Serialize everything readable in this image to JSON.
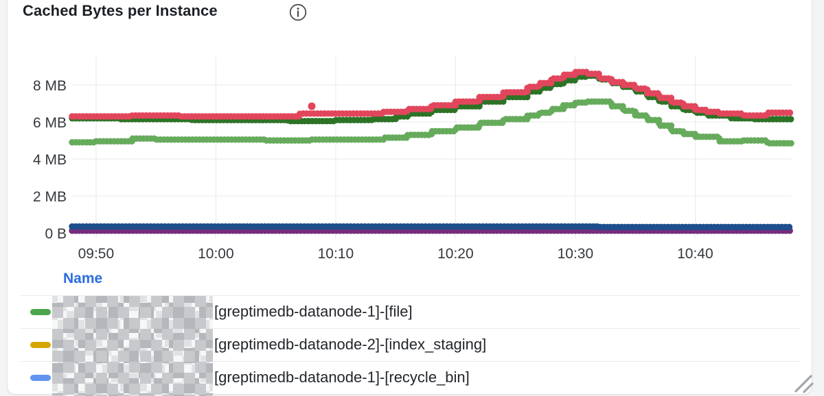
{
  "panel": {
    "title": "Cached Bytes per Instance"
  },
  "legend": {
    "header_label": "Name"
  },
  "chart_data": {
    "type": "line",
    "title": "Cached Bytes per Instance",
    "style": "dotted step line (dense point markers)",
    "unit": "bytes",
    "grid": true,
    "x_range": [
      "09:48",
      "10:48"
    ],
    "x_ticks": [
      "09:50",
      "10:00",
      "10:10",
      "10:20",
      "10:30",
      "10:40"
    ],
    "y_ticks": [
      {
        "label": "8 MB",
        "mb": 8
      },
      {
        "label": "6 MB",
        "mb": 6
      },
      {
        "label": "4 MB",
        "mb": 4
      },
      {
        "label": "2 MB",
        "mb": 2
      },
      {
        "label": "0 B",
        "mb": 0
      }
    ],
    "ylim_mb": [
      0,
      9.55
    ],
    "series": [
      {
        "name": "purple",
        "color": "#772d7b",
        "points": [
          [
            "09:48",
            0.12
          ],
          [
            "10:48",
            0.12
          ]
        ]
      },
      {
        "name": "dark-blue",
        "color": "#1f4e8c",
        "points": [
          [
            "09:48",
            0.35
          ],
          [
            "10:30",
            0.35
          ],
          [
            "10:32",
            0.32
          ],
          [
            "10:48",
            0.32
          ]
        ]
      },
      {
        "name": "light-green",
        "color": "#66ab5c",
        "points": [
          [
            "09:48",
            4.9
          ],
          [
            "09:50",
            4.95
          ],
          [
            "09:53",
            5.1
          ],
          [
            "09:55",
            5.05
          ],
          [
            "10:00",
            5.05
          ],
          [
            "10:04",
            5.0
          ],
          [
            "10:08",
            5.05
          ],
          [
            "10:12",
            5.05
          ],
          [
            "10:14",
            5.15
          ],
          [
            "10:16",
            5.3
          ],
          [
            "10:18",
            5.5
          ],
          [
            "10:20",
            5.7
          ],
          [
            "10:22",
            5.95
          ],
          [
            "10:24",
            6.15
          ],
          [
            "10:26",
            6.35
          ],
          [
            "10:27",
            6.5
          ],
          [
            "10:28",
            6.7
          ],
          [
            "10:29",
            6.9
          ],
          [
            "10:30",
            7.05
          ],
          [
            "10:31",
            7.1
          ],
          [
            "10:32",
            7.1
          ],
          [
            "10:33",
            6.85
          ],
          [
            "10:34",
            6.6
          ],
          [
            "10:35",
            6.35
          ],
          [
            "10:36",
            6.1
          ],
          [
            "10:37",
            5.8
          ],
          [
            "10:38",
            5.5
          ],
          [
            "10:39",
            5.35
          ],
          [
            "10:40",
            5.2
          ],
          [
            "10:42",
            4.95
          ],
          [
            "10:44",
            5.0
          ],
          [
            "10:46",
            4.85
          ],
          [
            "10:48",
            4.8
          ]
        ]
      },
      {
        "name": "dark-green",
        "color": "#2d7326",
        "points": [
          [
            "09:48",
            6.2
          ],
          [
            "09:52",
            6.15
          ],
          [
            "09:58",
            6.1
          ],
          [
            "10:03",
            6.1
          ],
          [
            "10:06",
            6.05
          ],
          [
            "10:10",
            6.1
          ],
          [
            "10:13",
            6.15
          ],
          [
            "10:15",
            6.3
          ],
          [
            "10:16",
            6.45
          ],
          [
            "10:18",
            6.65
          ],
          [
            "10:20",
            6.85
          ],
          [
            "10:22",
            7.1
          ],
          [
            "10:24",
            7.35
          ],
          [
            "10:26",
            7.65
          ],
          [
            "10:27",
            7.85
          ],
          [
            "10:28",
            8.05
          ],
          [
            "10:29",
            8.25
          ],
          [
            "10:30",
            8.45
          ],
          [
            "10:31",
            8.5
          ],
          [
            "10:32",
            8.3
          ],
          [
            "10:33",
            8.1
          ],
          [
            "10:34",
            7.9
          ],
          [
            "10:35",
            7.65
          ],
          [
            "10:36",
            7.35
          ],
          [
            "10:37",
            7.1
          ],
          [
            "10:38",
            6.85
          ],
          [
            "10:39",
            6.65
          ],
          [
            "10:40",
            6.5
          ],
          [
            "10:41",
            6.35
          ],
          [
            "10:43",
            6.2
          ],
          [
            "10:45",
            6.15
          ],
          [
            "10:48",
            6.15
          ]
        ]
      },
      {
        "name": "red",
        "color": "#e2465c",
        "points": [
          [
            "09:48",
            6.3
          ],
          [
            "09:53",
            6.35
          ],
          [
            "09:57",
            6.3
          ],
          [
            "10:02",
            6.3
          ],
          [
            "10:07",
            6.45
          ],
          [
            "10:12",
            6.45
          ],
          [
            "10:14",
            6.55
          ],
          [
            "10:16",
            6.7
          ],
          [
            "10:18",
            6.9
          ],
          [
            "10:20",
            7.1
          ],
          [
            "10:22",
            7.35
          ],
          [
            "10:24",
            7.6
          ],
          [
            "10:26",
            7.9
          ],
          [
            "10:27",
            8.1
          ],
          [
            "10:28",
            8.35
          ],
          [
            "10:29",
            8.55
          ],
          [
            "10:30",
            8.7
          ],
          [
            "10:31",
            8.6
          ],
          [
            "10:32",
            8.35
          ],
          [
            "10:33",
            8.15
          ],
          [
            "10:34",
            8.0
          ],
          [
            "10:35",
            7.8
          ],
          [
            "10:36",
            7.55
          ],
          [
            "10:37",
            7.3
          ],
          [
            "10:38",
            7.05
          ],
          [
            "10:39",
            6.85
          ],
          [
            "10:40",
            6.65
          ],
          [
            "10:41",
            6.55
          ],
          [
            "10:42",
            6.45
          ],
          [
            "10:44",
            6.35
          ],
          [
            "10:46",
            6.5
          ],
          [
            "10:48",
            6.6
          ]
        ]
      }
    ],
    "outlier_point": {
      "series": "red",
      "time": "10:08",
      "value_mb": 6.85,
      "color": "#e2465c"
    },
    "legend_visible_rows": [
      {
        "color": "#4aa54c",
        "label": "[greptimedb-datanode-1]-[file]"
      },
      {
        "color": "#d7a503",
        "label": "[greptimedb-datanode-2]-[index_staging]"
      },
      {
        "color": "#6094f0",
        "label": "[greptimedb-datanode-1]-[recycle_bin]"
      }
    ]
  }
}
